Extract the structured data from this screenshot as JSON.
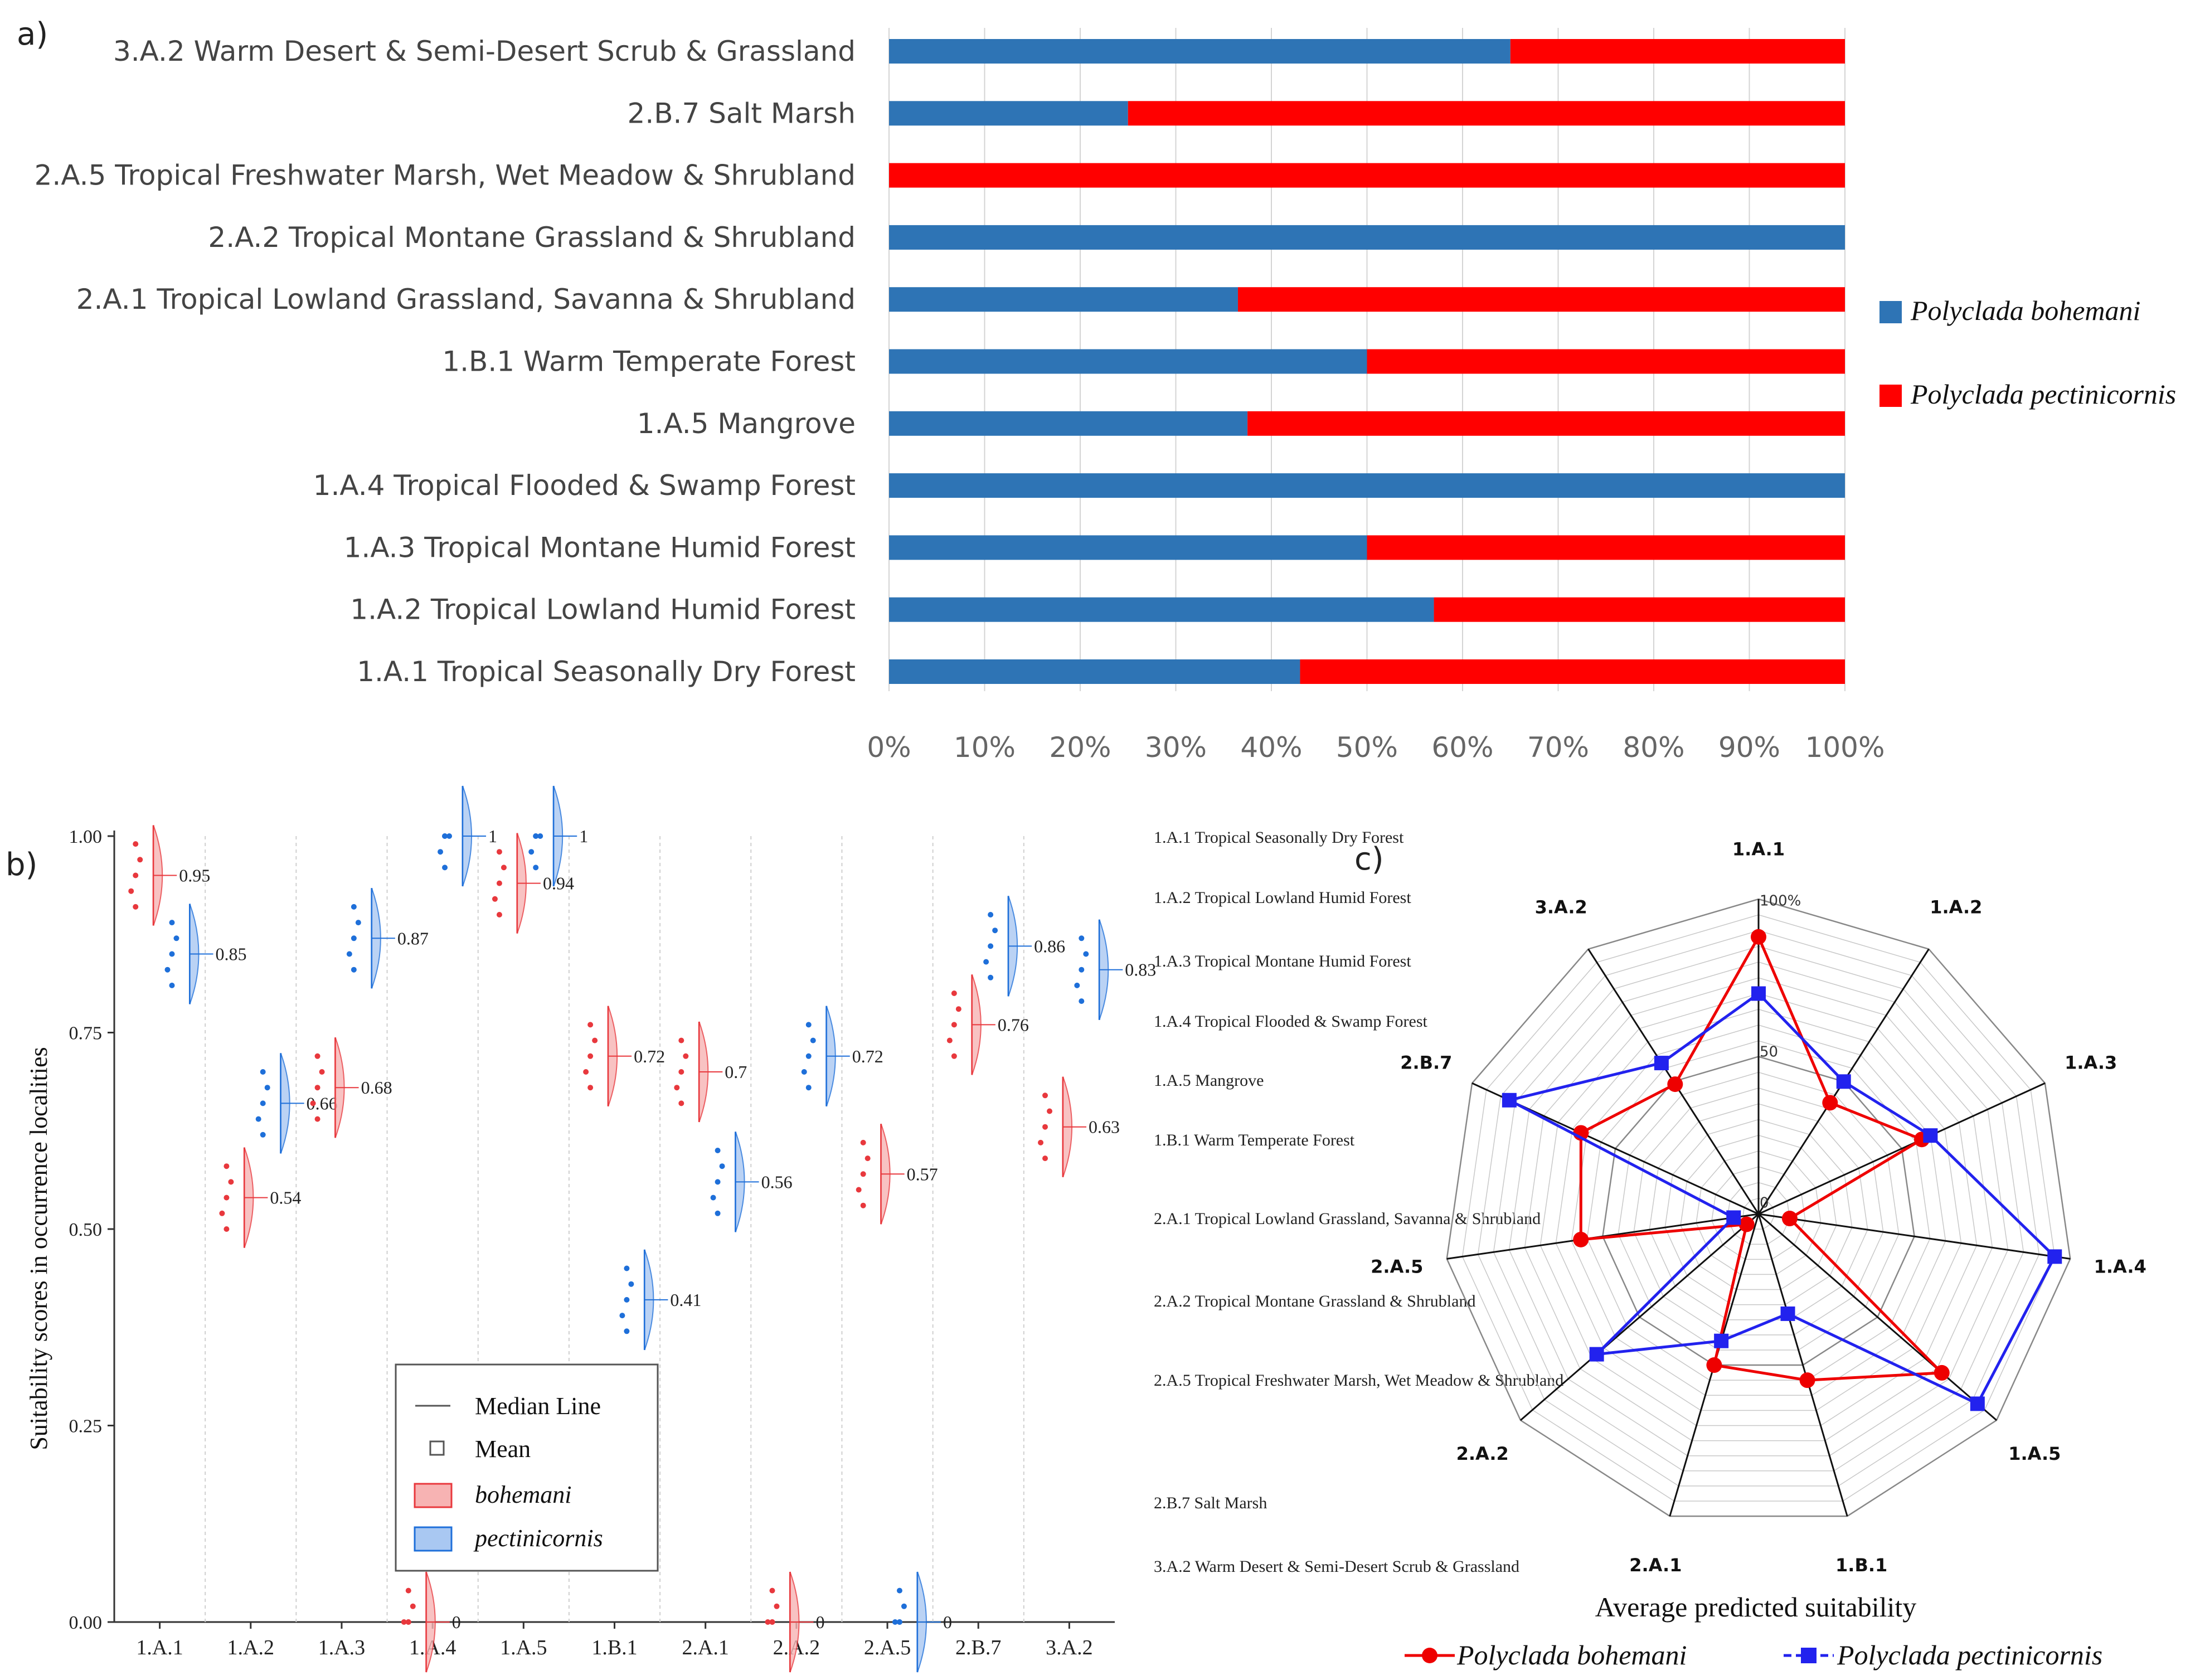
{
  "colors": {
    "blue": "#2e74b5",
    "red": "#ff0000",
    "blue_b": "#1e6fd9",
    "red_b": "#e8383d",
    "radar_red": "#ee0000",
    "radar_blue": "#2222ee"
  },
  "panel_a": {
    "label": "a)",
    "chart_data": {
      "type": "bar",
      "stacked": "percent",
      "orientation": "horizontal",
      "categories": [
        "1.A.1 Tropical Seasonally Dry Forest",
        "1.A.2 Tropical Lowland Humid Forest",
        "1.A.3 Tropical Montane Humid Forest",
        "1.A.4 Tropical Flooded & Swamp Forest",
        "1.A.5 Mangrove",
        "1.B.1 Warm Temperate Forest",
        "2.A.1 Tropical Lowland Grassland, Savanna & Shrubland",
        "2.A.2 Tropical Montane Grassland & Shrubland",
        "2.A.5 Tropical Freshwater Marsh, Wet Meadow & Shrubland",
        "2.B.7 Salt Marsh",
        "3.A.2 Warm Desert & Semi-Desert Scrub & Grassland"
      ],
      "series": [
        {
          "name": "Polyclada bohemani",
          "values": [
            43,
            57,
            50,
            100,
            37.5,
            50,
            36.5,
            100,
            0,
            25,
            65
          ]
        },
        {
          "name": "Polyclada pectinicornis",
          "values": [
            57,
            43,
            50,
            0,
            62.5,
            50,
            63.5,
            0,
            100,
            75,
            35
          ]
        }
      ],
      "xticks": [
        "0%",
        "10%",
        "20%",
        "30%",
        "40%",
        "50%",
        "60%",
        "70%",
        "80%",
        "90%",
        "100%"
      ],
      "xlim": [
        0,
        100
      ],
      "legend": [
        "Polyclada bohemani",
        "Polyclada pectinicornis"
      ]
    }
  },
  "panel_b": {
    "label": "b)",
    "chart_data": {
      "type": "scatter",
      "ylabel": "Suitability scores in occurrence localities",
      "ylim": [
        0,
        1
      ],
      "yticks": [
        "0.00",
        "0.25",
        "0.50",
        "0.75",
        "1.00"
      ],
      "categories": [
        "1.A.1",
        "1.A.2",
        "1.A.3",
        "1.A.4",
        "1.A.5",
        "1.B.1",
        "2.A.1",
        "2.A.2",
        "2.A.5",
        "2.B.7",
        "3.A.2"
      ],
      "series": [
        {
          "name": "bohemani",
          "values": [
            0.95,
            0.54,
            0.68,
            0,
            0.94,
            0.72,
            0.7,
            0,
            0.57,
            0.76,
            0.63
          ],
          "labels": [
            "0.95",
            "0.54",
            "0.68",
            "0",
            "0.94",
            "0.72",
            "0.7",
            "0",
            "0.57",
            "0.76",
            "0.63"
          ]
        },
        {
          "name": "pectinicornis",
          "values": [
            0.85,
            0.66,
            0.87,
            1,
            1,
            0.41,
            0.56,
            0.72,
            0,
            0.86,
            0.83
          ],
          "labels": [
            "0.85",
            "0.66",
            "0.87",
            "1",
            "1",
            "0.41",
            "0.56",
            "0.72",
            "0",
            "0.86",
            "0.83"
          ]
        }
      ],
      "legend": {
        "median": "Median Line",
        "mean": "Mean",
        "bohemani": "bohemani",
        "pectinicornis": "pectinicornis"
      },
      "category_notes": [
        "1.A.1 Tropical Seasonally Dry Forest",
        "1.A.2 Tropical Lowland Humid Forest",
        "1.A.3 Tropical Montane Humid Forest",
        "1.A.4 Tropical Flooded & Swamp Forest",
        "1.A.5 Mangrove",
        "1.B.1 Warm Temperate Forest",
        "2.A.1 Tropical Lowland Grassland, Savanna & Shrubland",
        "2.A.2 Tropical Montane Grassland & Shrubland",
        "2.A.5 Tropical Freshwater Marsh, Wet Meadow & Shrubland",
        "2.B.7 Salt Marsh",
        "3.A.2 Warm Desert & Semi-Desert Scrub & Grassland"
      ]
    }
  },
  "panel_c": {
    "label": "c)",
    "chart_data": {
      "type": "radar",
      "title": "Average predicted suitability",
      "axes": [
        "1.A.1",
        "1.A.2",
        "1.A.3",
        "1.A.4",
        "1.A.5",
        "1.B.1",
        "2.A.1",
        "2.A.2",
        "2.A.5",
        "2.B.7",
        "3.A.2"
      ],
      "range": [
        0,
        100
      ],
      "tick_labels": [
        "0",
        "50",
        "100%"
      ],
      "series": [
        {
          "name": "Polyclada bohemani",
          "values": [
            88,
            42,
            57,
            10,
            77,
            55,
            50,
            5,
            57,
            62,
            49
          ]
        },
        {
          "name": "Polyclada pectinicornis",
          "values": [
            70,
            50,
            60,
            95,
            92,
            33,
            42,
            68,
            8,
            87,
            57
          ]
        }
      ]
    }
  }
}
